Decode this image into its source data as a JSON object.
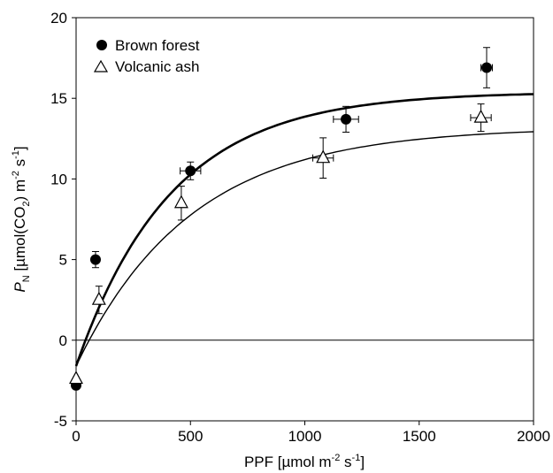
{
  "chart_data": {
    "type": "scatter",
    "xlabel": {
      "main": "PPF [µmol m",
      "sup1": "-2",
      "mid": " s",
      "sup2": "-1",
      "end": "]"
    },
    "ylabel": {
      "p": "P",
      "psub": "N",
      "a": " [µmol(CO",
      "asub": "2",
      "b": ") m",
      "sup1": "-2",
      "c": " s",
      "sup2": "-1",
      "d": "]"
    },
    "xlim": [
      0,
      2000
    ],
    "ylim": [
      -5,
      20
    ],
    "xticks": [
      0,
      500,
      1000,
      1500,
      2000
    ],
    "yticks": [
      -5,
      0,
      5,
      10,
      15,
      20
    ],
    "zero_line": true,
    "legend_position": "top-left",
    "series": [
      {
        "name": "Brown forest",
        "marker": "filled-circle",
        "color": "#000000",
        "points": [
          {
            "x": 0,
            "y": -2.8,
            "yerr": 0
          },
          {
            "x": 85,
            "y": 5.0,
            "yerr": 0.5,
            "xerr": 0
          },
          {
            "x": 500,
            "y": 10.5,
            "yerr": 0.55,
            "xerr": 45
          },
          {
            "x": 1180,
            "y": 13.7,
            "yerr": 0.8,
            "xerr": 55
          },
          {
            "x": 1795,
            "y": 16.9,
            "yerr": 1.25,
            "xerr": 25
          }
        ],
        "curve": {
          "pmax": 15.4,
          "rd": -1.6,
          "k": 0.0024
        }
      },
      {
        "name": "Volcanic ash",
        "marker": "open-triangle",
        "color": "#000000",
        "points": [
          {
            "x": 0,
            "y": -2.4,
            "yerr": 0
          },
          {
            "x": 100,
            "y": 2.5,
            "yerr": 0.85,
            "xerr": 0
          },
          {
            "x": 460,
            "y": 8.5,
            "yerr": 1.05,
            "xerr": 0
          },
          {
            "x": 1080,
            "y": 11.3,
            "yerr": 1.25,
            "xerr": 45
          },
          {
            "x": 1770,
            "y": 13.8,
            "yerr": 0.85,
            "xerr": 45
          }
        ],
        "curve": {
          "pmax": 13.2,
          "rd": -1.6,
          "k": 0.002
        }
      }
    ]
  }
}
